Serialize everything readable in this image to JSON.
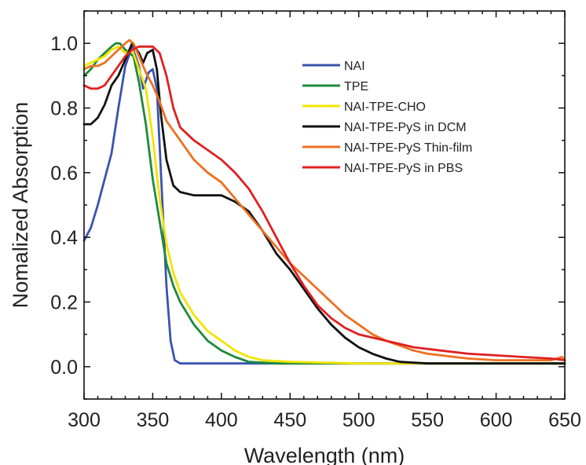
{
  "chart_data": {
    "type": "line",
    "title": "",
    "xlabel": "Wavelength (nm)",
    "ylabel": "Nomalized Absorption",
    "xlim": [
      300,
      650
    ],
    "ylim": [
      -0.1,
      1.1
    ],
    "xticks": [
      300,
      350,
      400,
      450,
      500,
      550,
      600,
      650
    ],
    "yticks": [
      0.0,
      0.2,
      0.4,
      0.6,
      0.8,
      1.0
    ],
    "ytick_labels": [
      "0.0",
      "0.2",
      "0.4",
      "0.6",
      "0.8",
      "1.0"
    ],
    "grid": false,
    "legend_position": "top-right",
    "series": [
      {
        "name": "NAI",
        "color": "#3a52b0",
        "x": [
          300,
          305,
          310,
          315,
          320,
          325,
          330,
          335,
          340,
          343,
          347,
          350,
          353,
          356,
          360,
          363,
          366,
          370,
          380,
          400,
          450,
          500,
          550,
          600,
          650
        ],
        "y": [
          0.39,
          0.43,
          0.5,
          0.58,
          0.66,
          0.8,
          0.93,
          0.99,
          0.93,
          0.86,
          0.91,
          0.92,
          0.86,
          0.6,
          0.25,
          0.08,
          0.02,
          0.01,
          0.01,
          0.01,
          0.01,
          0.01,
          0.01,
          0.01,
          0.01
        ]
      },
      {
        "name": "TPE",
        "color": "#1e8a3c",
        "x": [
          300,
          305,
          310,
          315,
          320,
          323,
          326,
          330,
          333,
          336,
          340,
          345,
          350,
          355,
          360,
          365,
          370,
          380,
          390,
          400,
          410,
          420,
          440,
          500,
          550,
          600,
          650
        ],
        "y": [
          0.9,
          0.92,
          0.95,
          0.97,
          0.99,
          1.0,
          1.0,
          0.98,
          0.97,
          0.96,
          0.88,
          0.75,
          0.58,
          0.45,
          0.32,
          0.25,
          0.2,
          0.13,
          0.08,
          0.05,
          0.03,
          0.015,
          0.01,
          0.01,
          0.01,
          0.01,
          0.01
        ]
      },
      {
        "name": "NAI-TPE-CHO",
        "color": "#f2e400",
        "x": [
          300,
          305,
          310,
          315,
          320,
          325,
          330,
          335,
          340,
          345,
          350,
          355,
          360,
          365,
          370,
          380,
          390,
          400,
          410,
          420,
          430,
          450,
          500,
          550,
          600,
          650
        ],
        "y": [
          0.93,
          0.94,
          0.95,
          0.96,
          0.98,
          0.99,
          0.97,
          0.98,
          0.92,
          0.86,
          0.71,
          0.52,
          0.38,
          0.29,
          0.23,
          0.16,
          0.11,
          0.08,
          0.05,
          0.03,
          0.02,
          0.015,
          0.01,
          0.01,
          0.01,
          0.01
        ]
      },
      {
        "name": "NAI-TPE-PyS in DCM",
        "color": "#111111",
        "x": [
          300,
          305,
          310,
          315,
          320,
          325,
          330,
          335,
          340,
          343,
          346,
          350,
          353,
          356,
          360,
          365,
          370,
          380,
          390,
          400,
          410,
          420,
          430,
          440,
          450,
          460,
          470,
          480,
          490,
          500,
          510,
          520,
          530,
          550,
          600,
          650
        ],
        "y": [
          0.75,
          0.75,
          0.77,
          0.81,
          0.87,
          0.9,
          0.95,
          1.0,
          0.97,
          0.94,
          0.97,
          0.98,
          0.92,
          0.78,
          0.64,
          0.56,
          0.54,
          0.53,
          0.53,
          0.53,
          0.51,
          0.48,
          0.42,
          0.35,
          0.3,
          0.24,
          0.18,
          0.13,
          0.09,
          0.06,
          0.04,
          0.025,
          0.015,
          0.01,
          0.01,
          0.01
        ]
      },
      {
        "name": "NAI-TPE-PyS Thin-film",
        "color": "#ee7020",
        "x": [
          300,
          305,
          310,
          315,
          320,
          325,
          330,
          333,
          336,
          340,
          345,
          350,
          355,
          360,
          370,
          380,
          390,
          400,
          410,
          420,
          430,
          440,
          450,
          460,
          470,
          480,
          490,
          500,
          510,
          520,
          530,
          540,
          550,
          560,
          570,
          580,
          600,
          620,
          640,
          648,
          650
        ],
        "y": [
          0.92,
          0.93,
          0.93,
          0.94,
          0.96,
          0.98,
          1.0,
          1.01,
          1.0,
          0.96,
          0.91,
          0.87,
          0.82,
          0.76,
          0.7,
          0.64,
          0.6,
          0.57,
          0.52,
          0.47,
          0.42,
          0.37,
          0.32,
          0.28,
          0.24,
          0.2,
          0.16,
          0.13,
          0.1,
          0.08,
          0.065,
          0.05,
          0.04,
          0.035,
          0.03,
          0.025,
          0.02,
          0.02,
          0.02,
          0.03,
          0.02
        ]
      },
      {
        "name": "NAI-TPE-PyS in PBS",
        "color": "#e02020",
        "x": [
          300,
          305,
          310,
          315,
          320,
          325,
          330,
          335,
          340,
          345,
          350,
          355,
          360,
          365,
          370,
          380,
          390,
          400,
          410,
          420,
          430,
          440,
          450,
          460,
          470,
          480,
          490,
          500,
          520,
          540,
          560,
          580,
          600,
          620,
          640,
          650
        ],
        "y": [
          0.87,
          0.86,
          0.86,
          0.87,
          0.9,
          0.93,
          0.96,
          0.98,
          0.99,
          0.99,
          0.99,
          0.97,
          0.9,
          0.8,
          0.74,
          0.7,
          0.67,
          0.64,
          0.6,
          0.55,
          0.48,
          0.4,
          0.32,
          0.25,
          0.19,
          0.15,
          0.12,
          0.1,
          0.08,
          0.06,
          0.05,
          0.04,
          0.035,
          0.03,
          0.025,
          0.02
        ]
      }
    ]
  }
}
